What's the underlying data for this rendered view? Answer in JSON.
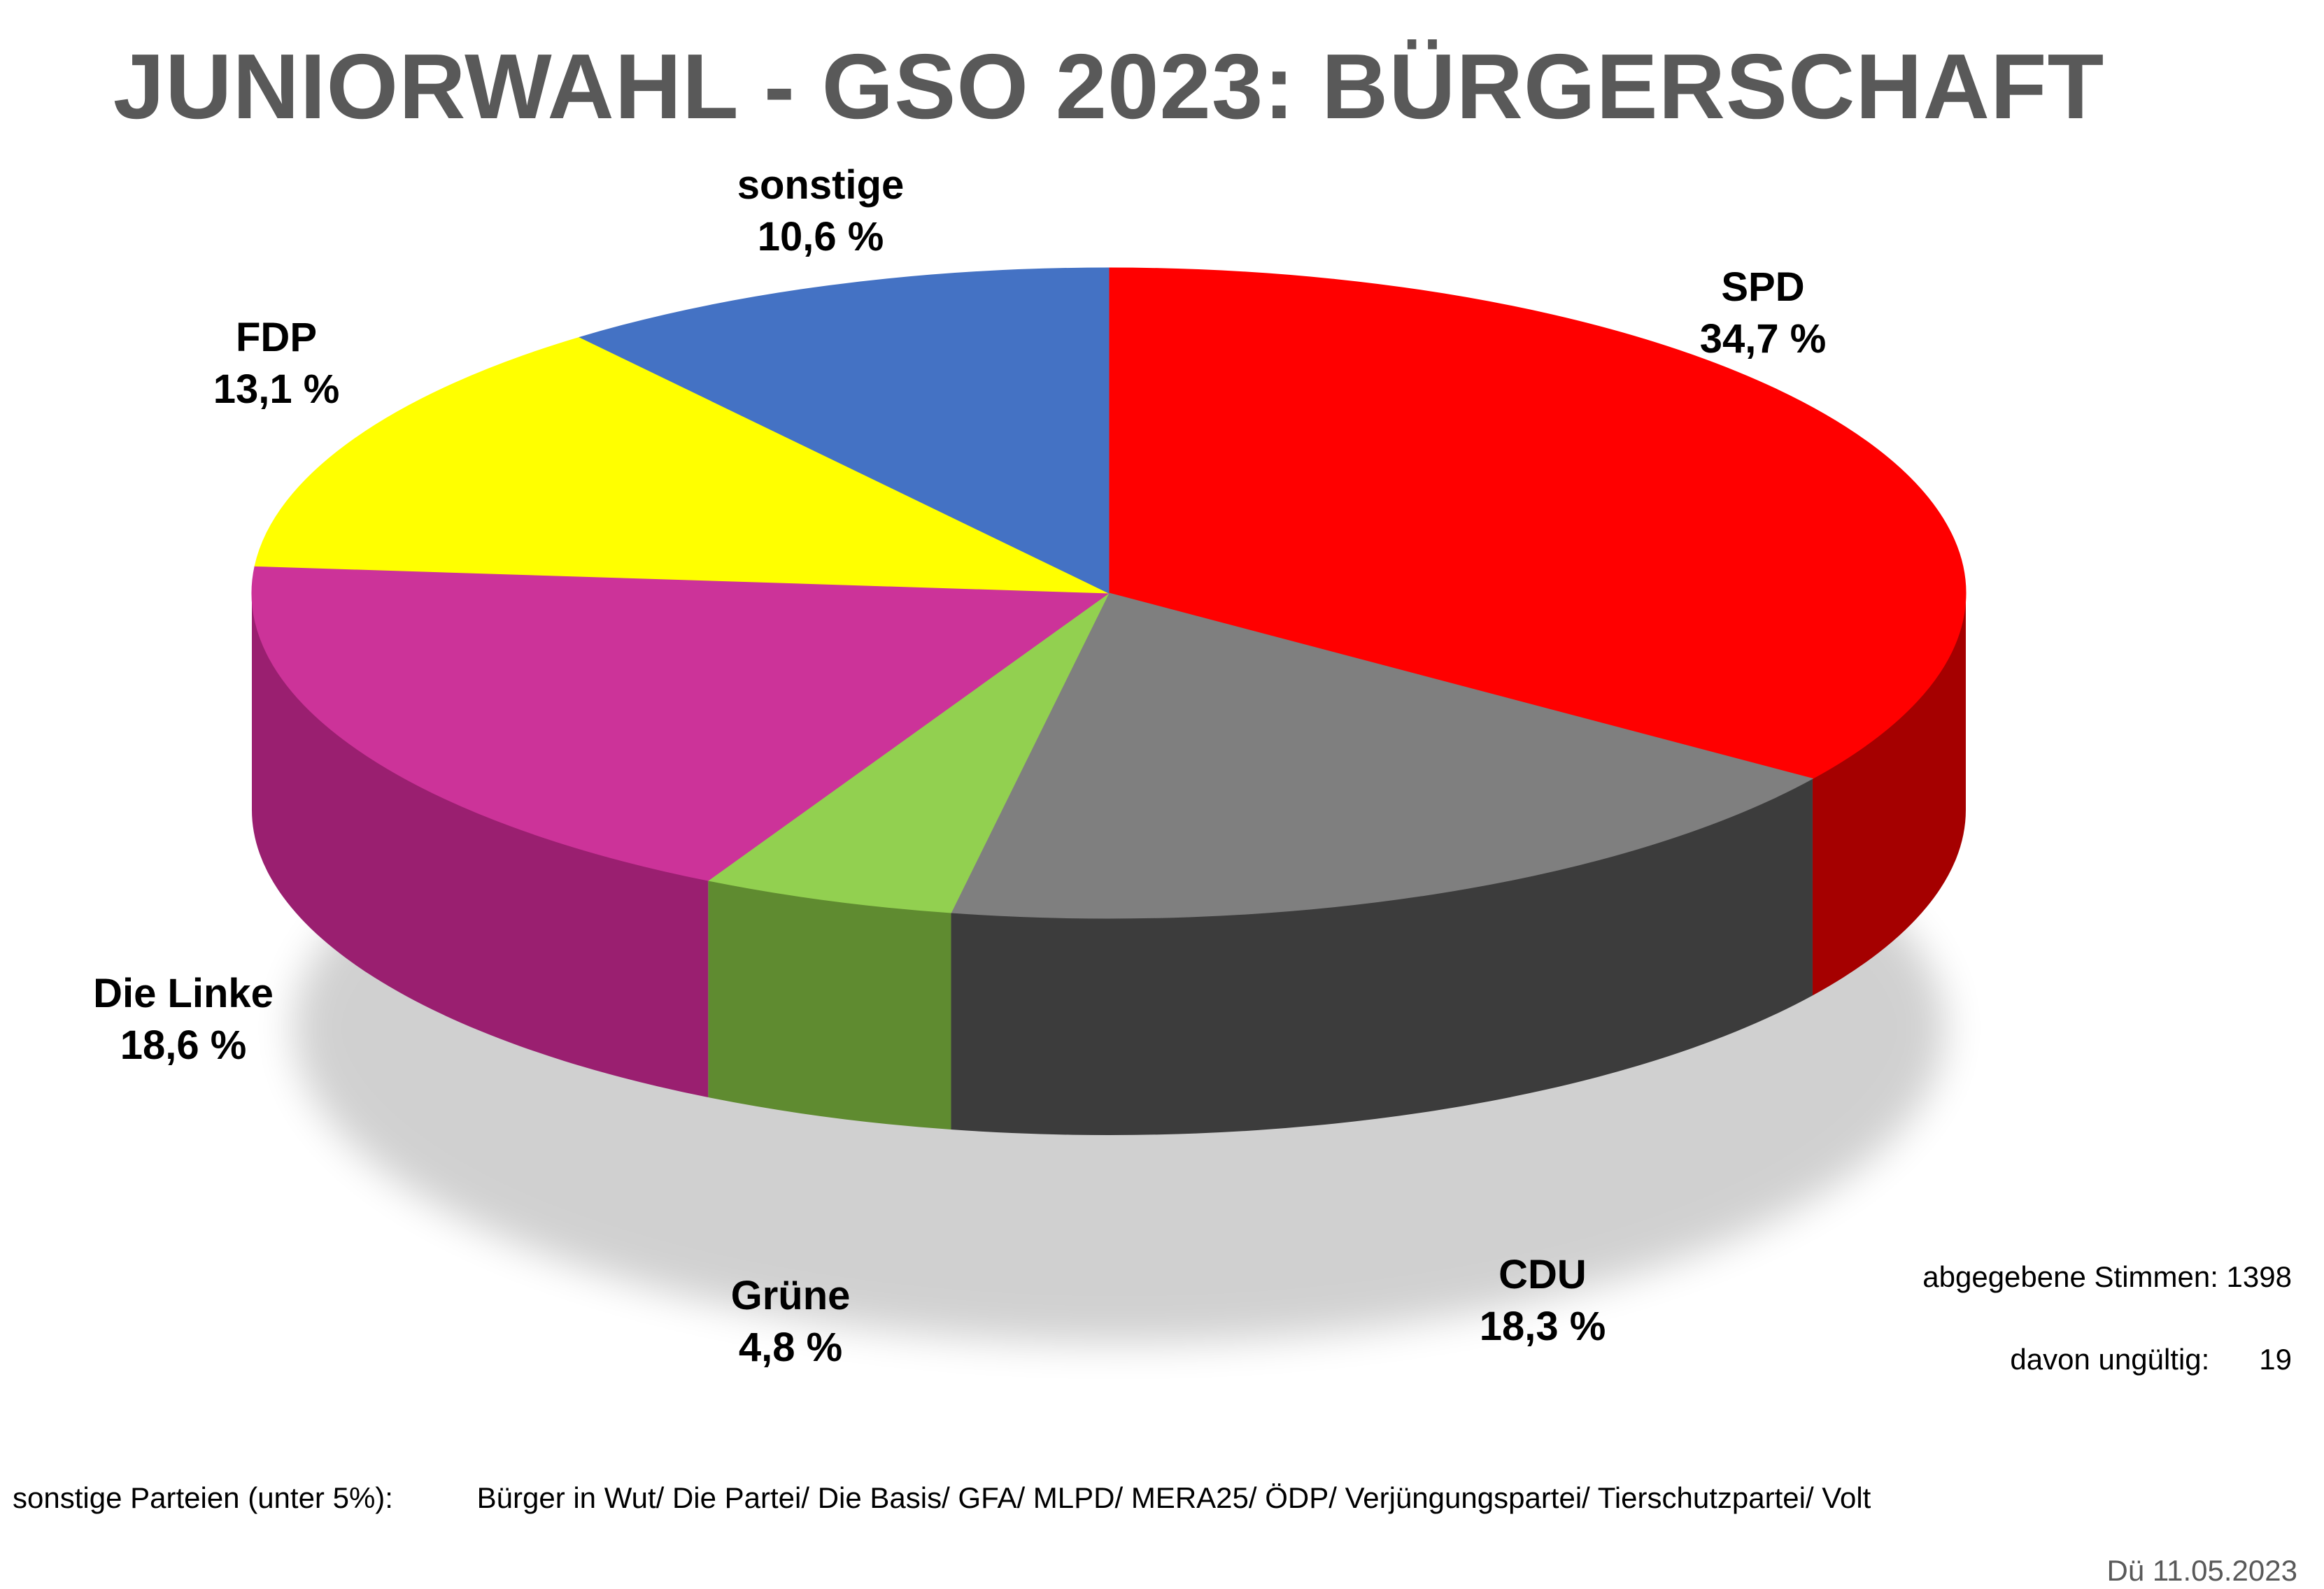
{
  "title": "JUNIORWAHL - GSO 2023: BÜRGERSCHAFT",
  "chart_data": {
    "type": "pie",
    "title": "JUNIORWAHL - GSO 2023: BÜRGERSCHAFT",
    "unit": "%",
    "slices": [
      {
        "name": "SPD",
        "value": 34.7,
        "label": "34,7 %",
        "color": "#ff0000",
        "side_color": "#a50000"
      },
      {
        "name": "CDU",
        "value": 18.3,
        "label": "18,3 %",
        "color": "#7f7f7f",
        "side_color": "#3c3c3c"
      },
      {
        "name": "Grüne",
        "value": 4.8,
        "label": "4,8 %",
        "color": "#92d050",
        "side_color": "#5f8b30"
      },
      {
        "name": "Die Linke",
        "value": 18.6,
        "label": "18,6 %",
        "color": "#cc3399",
        "side_color": "#9a1f70"
      },
      {
        "name": "FDP",
        "value": 13.1,
        "label": "13,1 %",
        "color": "#ffff00",
        "side_color": "#b8b800"
      },
      {
        "name": "sonstige",
        "value": 10.6,
        "label": "10,6 %",
        "color": "#4472c4",
        "side_color": "#2c4f8f"
      }
    ]
  },
  "stats": {
    "votes_label": "abgegebene Stimmen: 1398",
    "invalid_label": "davon ungültig:",
    "invalid_value": "19"
  },
  "footnote": {
    "label": "sonstige Parteien (unter 5%):",
    "parties": "Bürger in Wut/ Die Partei/ Die Basis/ GFA/ MLPD/ MERA25/ ÖDP/ Verjüngungspartei/ Tierschutzpartei/ Volt"
  },
  "signature": "Dü 11.05.2023"
}
